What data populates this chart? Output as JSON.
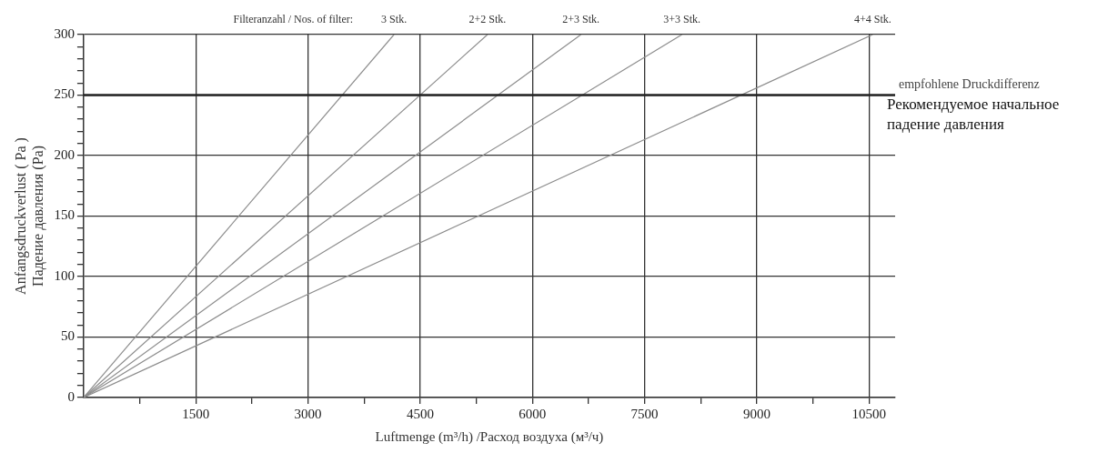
{
  "chart_data": {
    "type": "line",
    "title": "Filteranzahl / Nos. of filter:",
    "xlabel": "Luftmenge (m³/h) /Расход воздуха (м³/ч)",
    "ylabel": "Anfangsdruckverlust ( Pa )\nПадение давления (Pa)",
    "xlim": [
      0,
      10850
    ],
    "ylim": [
      0,
      300
    ],
    "xticks": [
      {
        "value": 750,
        "label": null
      },
      1500,
      {
        "value": 2250,
        "label": null
      },
      3000,
      {
        "value": 3750,
        "label": null
      },
      4500,
      {
        "value": 5250,
        "label": null
      },
      6000,
      {
        "value": 6750,
        "label": null
      },
      7500,
      {
        "value": 8250,
        "label": null
      },
      9000,
      {
        "value": 9750,
        "label": null
      },
      10500
    ],
    "yticks": [
      0,
      {
        "value": 10,
        "label": null
      },
      {
        "value": 20,
        "label": null
      },
      {
        "value": 30,
        "label": null
      },
      {
        "value": 40,
        "label": null
      },
      50,
      {
        "value": 60,
        "label": null
      },
      {
        "value": 70,
        "label": null
      },
      {
        "value": 80,
        "label": null
      },
      {
        "value": 90,
        "label": null
      },
      100,
      {
        "value": 110,
        "label": null
      },
      {
        "value": 120,
        "label": null
      },
      {
        "value": 130,
        "label": null
      },
      {
        "value": 140,
        "label": null
      },
      150,
      {
        "value": 160,
        "label": null
      },
      {
        "value": 170,
        "label": null
      },
      {
        "value": 180,
        "label": null
      },
      {
        "value": 190,
        "label": null
      },
      200,
      {
        "value": 210,
        "label": null
      },
      {
        "value": 220,
        "label": null
      },
      {
        "value": 230,
        "label": null
      },
      {
        "value": 240,
        "label": null
      },
      250,
      {
        "value": 260,
        "label": null
      },
      {
        "value": 270,
        "label": null
      },
      {
        "value": 280,
        "label": null
      },
      {
        "value": 290,
        "label": null
      },
      300
    ],
    "grid": true,
    "legend": false,
    "marker": "none",
    "line_style": "solid",
    "series": [
      {
        "name": "3 Stk.",
        "color": "#8c8c8c",
        "x": [
          0,
          4150
        ],
        "values": [
          0,
          300
        ]
      },
      {
        "name": "2+2 Stk.",
        "color": "#8c8c8c",
        "x": [
          0,
          5400
        ],
        "values": [
          0,
          300
        ]
      },
      {
        "name": "2+3 Stk.",
        "color": "#8c8c8c",
        "x": [
          0,
          6650
        ],
        "values": [
          0,
          300
        ]
      },
      {
        "name": "3+3 Stk.",
        "color": "#8c8c8c",
        "x": [
          0,
          8000
        ],
        "values": [
          0,
          300
        ]
      },
      {
        "name": "4+4 Stk.",
        "color": "#8c8c8c",
        "x": [
          0,
          10550
        ],
        "values": [
          0,
          300
        ]
      }
    ],
    "ref_lines": [
      {
        "axis": "y",
        "value": 250,
        "label": "empfohlene Druckdifferenz",
        "color": "#222222"
      }
    ],
    "annotations": [
      "Рекомендуемое начальное падение давления"
    ]
  }
}
